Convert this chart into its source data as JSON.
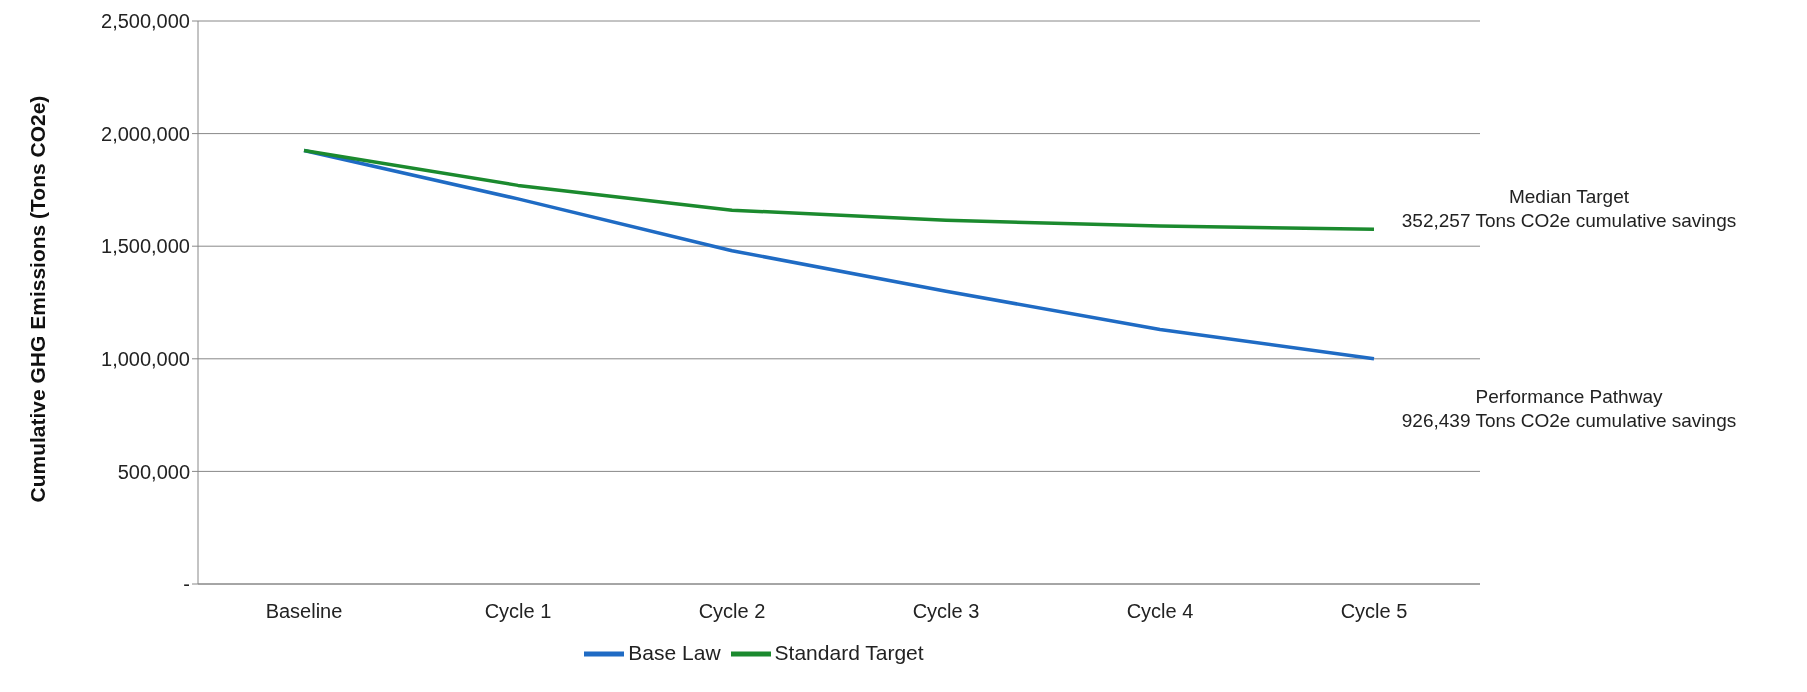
{
  "chart_data": {
    "type": "line",
    "ylabel": "Cumulative GHG Emissions (Tons CO2e)",
    "categories": [
      "Baseline",
      "Cycle 1",
      "Cycle 2",
      "Cycle 3",
      "Cycle 4",
      "Cycle 5"
    ],
    "series": [
      {
        "name": "Base Law",
        "color": "#1f6bc4",
        "values": [
          1925000,
          1710000,
          1480000,
          1300000,
          1130000,
          1000000
        ]
      },
      {
        "name": "Standard Target",
        "color": "#1b8a2e",
        "values": [
          1925000,
          1770000,
          1660000,
          1615000,
          1590000,
          1575000
        ]
      }
    ],
    "ylim": [
      0,
      2500000
    ],
    "yticks": [
      {
        "value": 0,
        "label": "-"
      },
      {
        "value": 500000,
        "label": "500,000"
      },
      {
        "value": 1000000,
        "label": "1,000,000"
      },
      {
        "value": 1500000,
        "label": "1,500,000"
      },
      {
        "value": 2000000,
        "label": "2,000,000"
      },
      {
        "value": 2500000,
        "label": "2,500,000"
      }
    ],
    "grid": "y",
    "legend": "bottom",
    "marker": "none",
    "line_style": "solid",
    "annotations": [
      {
        "text": "Median Target\n352,257 Tons CO2e cumulative savings",
        "x": "Cycle 5",
        "y": 1575000
      },
      {
        "text": "Performance Pathway\n926,439 Tons CO2e cumulative savings",
        "x": "Cycle 5",
        "y": 1000000
      }
    ]
  }
}
